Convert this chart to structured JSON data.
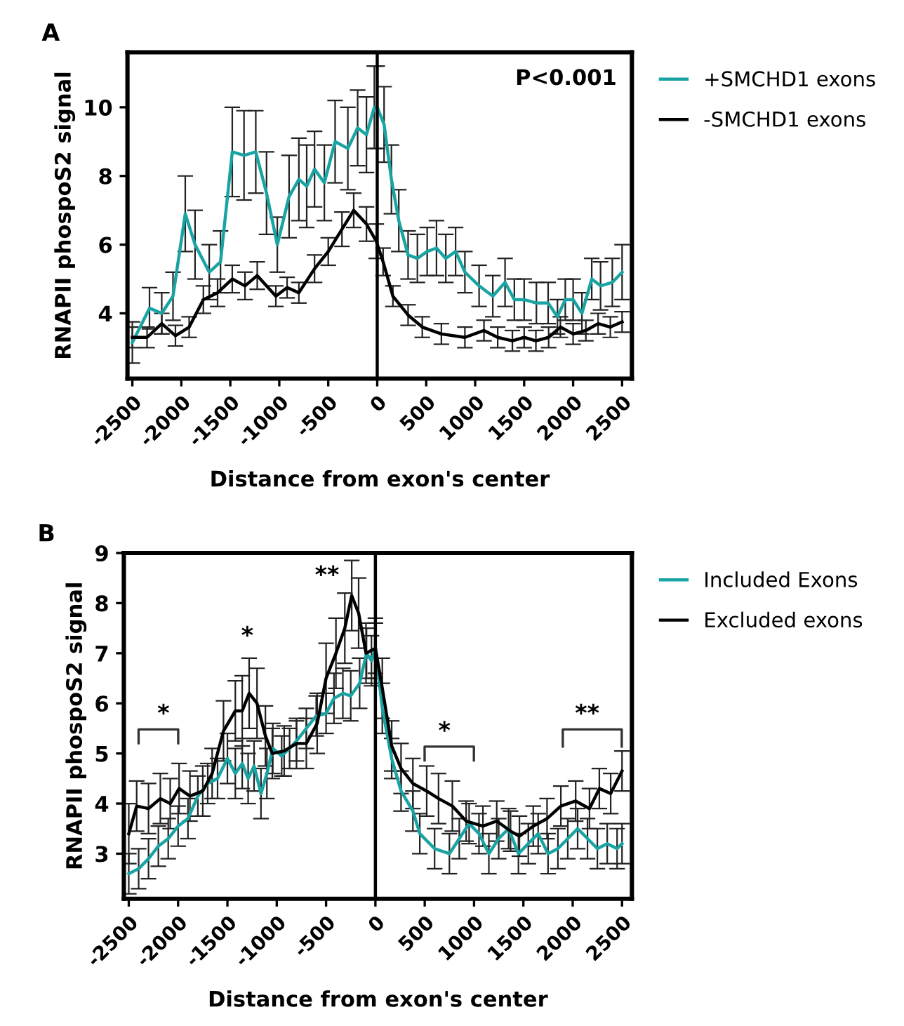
{
  "chart_data": [
    {
      "type": "line",
      "title": "A",
      "xlabel": "Distance from exon's center",
      "ylabel": "RNAPII phospoS2 signal",
      "legend": "top right",
      "grid": false,
      "marker": "none",
      "line_style": "solid",
      "xlim": [
        -2550,
        2600
      ],
      "xticks": [
        -2500,
        -2000,
        -1500,
        -1000,
        -500,
        0,
        500,
        1000,
        1500,
        2000,
        2500
      ],
      "ylim": [
        2.1,
        11.6
      ],
      "yticks": [
        4,
        6,
        8,
        10
      ],
      "ref_lines": [
        {
          "axis": "x",
          "value": 0,
          "color": "#000000"
        }
      ],
      "annotations": [
        "P<0.001"
      ],
      "series": [
        {
          "name": "+SMCHD1 exons",
          "color": "#1aa3a3",
          "x": [
            -2500,
            -2325,
            -2200,
            -2085,
            -1960,
            -1860,
            -1715,
            -1600,
            -1480,
            -1360,
            -1240,
            -1130,
            -1020,
            -900,
            -800,
            -720,
            -640,
            -540,
            -430,
            -300,
            -200,
            -110,
            -30,
            0,
            70,
            145,
            220,
            315,
            410,
            510,
            605,
            700,
            800,
            895,
            1040,
            1180,
            1305,
            1400,
            1500,
            1625,
            1745,
            1840,
            1920,
            2000,
            2090,
            2190,
            2280,
            2400,
            2500
          ],
          "values": [
            3.15,
            4.15,
            4.0,
            4.5,
            6.9,
            6.0,
            5.2,
            5.5,
            8.7,
            8.6,
            8.7,
            7.5,
            6.0,
            7.4,
            7.9,
            7.7,
            8.2,
            7.8,
            9.0,
            8.8,
            9.4,
            9.2,
            10.0,
            10.0,
            9.5,
            7.9,
            6.7,
            5.7,
            5.6,
            5.8,
            5.9,
            5.6,
            5.8,
            5.2,
            4.8,
            4.5,
            4.9,
            4.4,
            4.4,
            4.3,
            4.3,
            3.9,
            4.4,
            4.4,
            4.0,
            5.0,
            4.8,
            4.9,
            5.2
          ],
          "errors": [
            0.6,
            0.6,
            0.6,
            0.7,
            1.1,
            1.0,
            0.8,
            0.9,
            1.3,
            1.3,
            1.2,
            1.2,
            0.8,
            1.2,
            1.2,
            1.2,
            1.1,
            1.1,
            1.2,
            1.2,
            1.1,
            1.1,
            1.2,
            1.2,
            1.1,
            1.0,
            0.9,
            0.7,
            0.7,
            0.7,
            0.8,
            0.7,
            0.7,
            0.6,
            0.6,
            0.6,
            0.7,
            0.6,
            0.6,
            0.6,
            0.6,
            0.5,
            0.6,
            0.6,
            0.6,
            0.6,
            0.7,
            0.7,
            0.8
          ]
        },
        {
          "name": "-SMCHD1 exons",
          "color": "#000000",
          "x": [
            -2500,
            -2350,
            -2200,
            -2060,
            -1920,
            -1775,
            -1630,
            -1480,
            -1350,
            -1225,
            -1035,
            -920,
            -800,
            -640,
            -500,
            -360,
            -240,
            -110,
            -10,
            60,
            160,
            315,
            460,
            655,
            895,
            1090,
            1230,
            1380,
            1500,
            1620,
            1750,
            1870,
            2000,
            2130,
            2255,
            2380,
            2500
          ],
          "values": [
            3.3,
            3.3,
            3.7,
            3.35,
            3.6,
            4.4,
            4.6,
            5.0,
            4.8,
            5.1,
            4.5,
            4.75,
            4.6,
            5.3,
            5.8,
            6.45,
            7.0,
            6.6,
            6.1,
            5.5,
            4.5,
            3.95,
            3.6,
            3.4,
            3.3,
            3.5,
            3.3,
            3.2,
            3.3,
            3.2,
            3.3,
            3.6,
            3.4,
            3.5,
            3.7,
            3.6,
            3.75
          ],
          "errors": [
            0.3,
            0.3,
            0.3,
            0.3,
            0.3,
            0.4,
            0.4,
            0.4,
            0.4,
            0.4,
            0.3,
            0.3,
            0.3,
            0.4,
            0.4,
            0.5,
            0.5,
            0.5,
            0.5,
            0.4,
            0.3,
            0.3,
            0.3,
            0.3,
            0.3,
            0.3,
            0.3,
            0.3,
            0.3,
            0.3,
            0.3,
            0.3,
            0.3,
            0.3,
            0.3,
            0.3,
            0.3
          ]
        }
      ]
    },
    {
      "type": "line",
      "title": "B",
      "xlabel": "Distance from exon's center",
      "ylabel": "RNAPII phospoS2 signal",
      "legend": "top right",
      "grid": false,
      "marker": "none",
      "line_style": "solid",
      "xlim": [
        -2550,
        2600
      ],
      "xticks": [
        -2500,
        -2000,
        -1500,
        -1000,
        -500,
        0,
        500,
        1000,
        1500,
        2000,
        2500
      ],
      "ylim": [
        2.1,
        9.0
      ],
      "yticks": [
        3,
        4,
        5,
        6,
        7,
        8,
        9
      ],
      "ref_lines": [
        {
          "axis": "x",
          "value": 0,
          "color": "#000000"
        }
      ],
      "annotations": [
        "*",
        "*",
        "**",
        "*",
        "**"
      ],
      "series": [
        {
          "name": "Included Exons",
          "color": "#1aa3a3",
          "x": [
            -2500,
            -2400,
            -2300,
            -2200,
            -2100,
            -2000,
            -1900,
            -1800,
            -1700,
            -1600,
            -1500,
            -1420,
            -1350,
            -1290,
            -1230,
            -1160,
            -1100,
            -1040,
            -950,
            -870,
            -800,
            -700,
            -600,
            -500,
            -420,
            -330,
            -250,
            -160,
            -90,
            -40,
            0,
            70,
            165,
            260,
            380,
            450,
            600,
            750,
            850,
            950,
            1050,
            1150,
            1250,
            1350,
            1450,
            1550,
            1650,
            1750,
            1850,
            1950,
            2050,
            2150,
            2250,
            2350,
            2450,
            2500
          ],
          "values": [
            2.6,
            2.7,
            2.9,
            3.15,
            3.3,
            3.55,
            3.7,
            4.15,
            4.4,
            4.5,
            4.9,
            4.6,
            4.8,
            4.5,
            4.75,
            4.2,
            4.6,
            5.1,
            4.95,
            5.1,
            5.25,
            5.5,
            5.75,
            5.8,
            6.1,
            6.2,
            6.15,
            6.4,
            7.0,
            6.85,
            7.1,
            5.9,
            4.9,
            4.25,
            3.85,
            3.4,
            3.1,
            3.0,
            3.3,
            3.6,
            3.4,
            3.0,
            3.3,
            3.5,
            3.0,
            3.2,
            3.4,
            3.0,
            3.1,
            3.3,
            3.5,
            3.3,
            3.1,
            3.2,
            3.1,
            3.2
          ],
          "errors": [
            0.4,
            0.4,
            0.4,
            0.4,
            0.4,
            0.4,
            0.4,
            0.4,
            0.4,
            0.4,
            0.5,
            0.5,
            0.5,
            0.5,
            0.5,
            0.5,
            0.5,
            0.5,
            0.4,
            0.4,
            0.4,
            0.4,
            0.4,
            0.4,
            0.5,
            0.5,
            0.5,
            0.5,
            0.5,
            0.5,
            0.5,
            0.5,
            0.4,
            0.4,
            0.4,
            0.4,
            0.4,
            0.4,
            0.4,
            0.4,
            0.4,
            0.4,
            0.4,
            0.4,
            0.4,
            0.4,
            0.4,
            0.4,
            0.4,
            0.4,
            0.4,
            0.4,
            0.4,
            0.4,
            0.4,
            0.4
          ]
        },
        {
          "name": "Excluded exons",
          "color": "#000000",
          "x": [
            -2500,
            -2420,
            -2300,
            -2180,
            -2080,
            -1990,
            -1880,
            -1750,
            -1655,
            -1540,
            -1420,
            -1350,
            -1280,
            -1200,
            -1115,
            -1045,
            -925,
            -800,
            -700,
            -590,
            -500,
            -400,
            -310,
            -240,
            -170,
            -95,
            0,
            70,
            165,
            260,
            380,
            520,
            640,
            780,
            920,
            1090,
            1230,
            1370,
            1460,
            1600,
            1740,
            1880,
            2030,
            2170,
            2270,
            2385,
            2500
          ],
          "values": [
            3.4,
            3.95,
            3.9,
            4.1,
            4.0,
            4.3,
            4.15,
            4.25,
            4.6,
            5.45,
            5.85,
            5.85,
            6.2,
            6.0,
            5.35,
            5.0,
            5.05,
            5.2,
            5.2,
            5.6,
            6.5,
            7.0,
            7.5,
            8.15,
            7.8,
            7.0,
            7.1,
            6.3,
            5.15,
            4.7,
            4.4,
            4.25,
            4.1,
            3.95,
            3.65,
            3.55,
            3.65,
            3.45,
            3.35,
            3.55,
            3.7,
            3.95,
            4.05,
            3.9,
            4.3,
            4.2,
            4.65
          ],
          "errors": [
            0.6,
            0.5,
            0.5,
            0.5,
            0.5,
            0.5,
            0.5,
            0.5,
            0.5,
            0.6,
            0.6,
            0.7,
            0.7,
            0.7,
            0.6,
            0.5,
            0.5,
            0.5,
            0.5,
            0.6,
            0.7,
            0.7,
            0.7,
            0.7,
            0.7,
            0.6,
            0.6,
            0.6,
            0.5,
            0.5,
            0.5,
            0.5,
            0.5,
            0.5,
            0.4,
            0.4,
            0.4,
            0.4,
            0.4,
            0.4,
            0.4,
            0.4,
            0.4,
            0.4,
            0.4,
            0.4,
            0.4
          ]
        }
      ]
    }
  ]
}
